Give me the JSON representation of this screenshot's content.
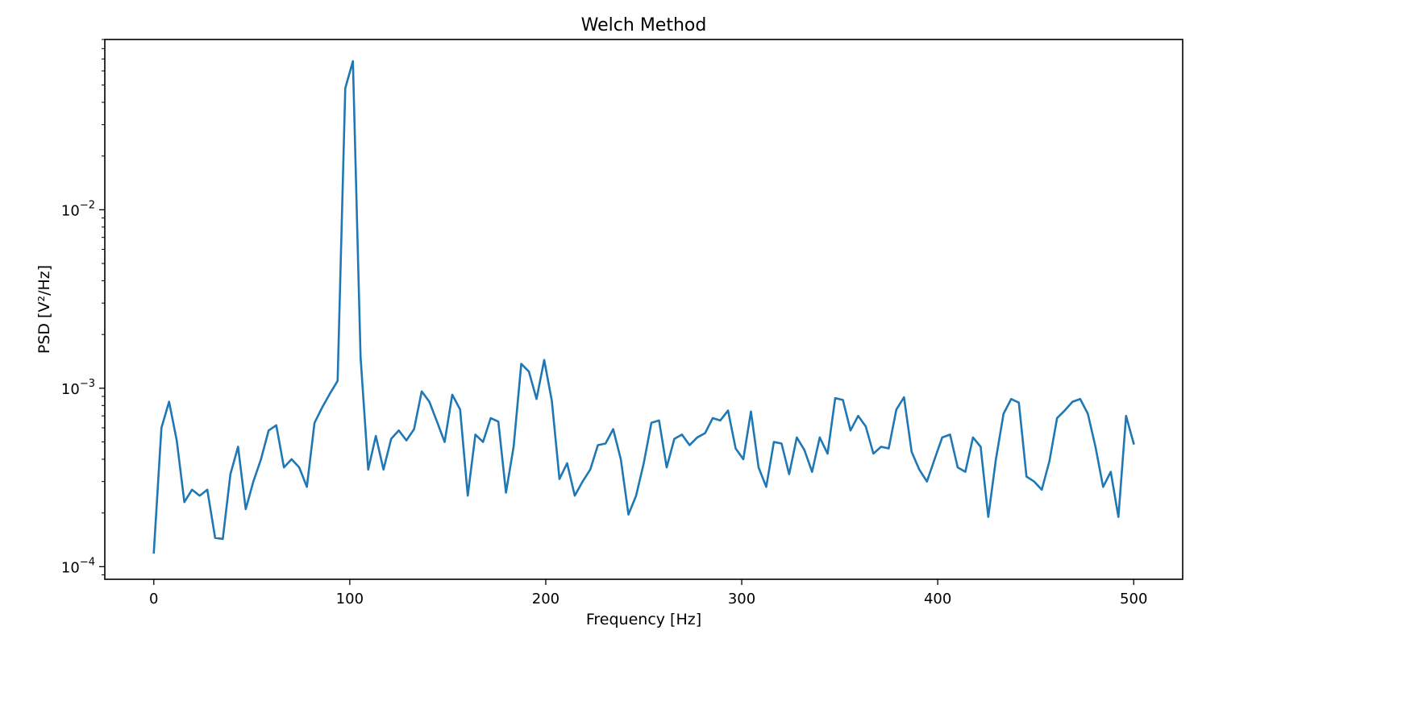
{
  "chart_data": {
    "type": "line",
    "title": "Welch Method",
    "xlabel": "Frequency [Hz]",
    "ylabel": "PSD [V²/Hz]",
    "xlim": [
      -25,
      525
    ],
    "ylim": [
      8.5e-05,
      0.09
    ],
    "yscale": "log",
    "grid": false,
    "x_ticks": [
      0,
      100,
      200,
      300,
      400,
      500
    ],
    "x_tick_labels": [
      "0",
      "100",
      "200",
      "300",
      "400",
      "500"
    ],
    "y_ticks": [
      0.0001,
      0.001,
      0.01
    ],
    "y_tick_labels": [
      {
        "base": "10",
        "exp": "−4"
      },
      {
        "base": "10",
        "exp": "−3"
      },
      {
        "base": "10",
        "exp": "−2"
      }
    ],
    "series": [
      {
        "color": "#1f77b4",
        "x": [
          0,
          3.9,
          7.8,
          11.7,
          15.6,
          19.5,
          23.4,
          27.3,
          31.3,
          35.2,
          39.1,
          43.0,
          46.9,
          50.8,
          54.7,
          58.6,
          62.5,
          66.4,
          70.3,
          74.2,
          78.1,
          82.0,
          85.9,
          89.8,
          93.8,
          97.7,
          101.6,
          105.5,
          109.4,
          113.3,
          117.2,
          121.1,
          125.0,
          128.9,
          132.8,
          136.7,
          140.6,
          144.5,
          148.4,
          152.3,
          156.3,
          160.2,
          164.1,
          168.0,
          171.9,
          175.8,
          179.7,
          183.6,
          187.5,
          191.4,
          195.3,
          199.2,
          203.1,
          207.0,
          210.9,
          214.8,
          218.8,
          222.7,
          226.6,
          230.5,
          234.4,
          238.3,
          242.2,
          246.1,
          250.0,
          253.9,
          257.8,
          261.7,
          265.6,
          269.5,
          273.4,
          277.3,
          281.3,
          285.2,
          289.1,
          293.0,
          296.9,
          300.8,
          304.7,
          308.6,
          312.5,
          316.4,
          320.3,
          324.2,
          328.1,
          332.0,
          335.9,
          339.8,
          343.8,
          347.7,
          351.6,
          355.5,
          359.4,
          363.3,
          367.2,
          371.1,
          375.0,
          378.9,
          382.8,
          386.7,
          390.6,
          394.5,
          398.4,
          402.3,
          406.3,
          410.2,
          414.1,
          418.0,
          421.9,
          425.8,
          429.7,
          433.6,
          437.5,
          441.4,
          445.3,
          449.2,
          453.1,
          457.0,
          460.9,
          464.8,
          468.8,
          472.7,
          476.6,
          480.5,
          484.4,
          488.3,
          492.2,
          496.1,
          500.0
        ],
        "y": [
          0.00012,
          0.0006,
          0.00084,
          0.00051,
          0.00023,
          0.00027,
          0.00025,
          0.00027,
          0.000145,
          0.000143,
          0.00033,
          0.00047,
          0.00021,
          0.0003,
          0.0004,
          0.00058,
          0.00062,
          0.00036,
          0.0004,
          0.00036,
          0.00028,
          0.00064,
          0.00078,
          0.00093,
          0.0011,
          0.048,
          0.068,
          0.0015,
          0.00035,
          0.00054,
          0.00035,
          0.00052,
          0.00058,
          0.00051,
          0.00059,
          0.00096,
          0.00084,
          0.00065,
          0.0005,
          0.00092,
          0.00076,
          0.00025,
          0.00055,
          0.0005,
          0.00068,
          0.00065,
          0.00026,
          0.00047,
          0.00137,
          0.00124,
          0.00087,
          0.00144,
          0.00085,
          0.00031,
          0.00038,
          0.00025,
          0.0003,
          0.00035,
          0.00048,
          0.00049,
          0.00059,
          0.0004,
          0.000196,
          0.00025,
          0.00038,
          0.00064,
          0.00066,
          0.00036,
          0.00052,
          0.00055,
          0.00048,
          0.00053,
          0.00056,
          0.00068,
          0.00066,
          0.00075,
          0.00046,
          0.0004,
          0.00074,
          0.00036,
          0.00028,
          0.0005,
          0.00049,
          0.00033,
          0.00053,
          0.00045,
          0.00034,
          0.00053,
          0.00043,
          0.00088,
          0.00086,
          0.00058,
          0.0007,
          0.00061,
          0.00043,
          0.00047,
          0.00046,
          0.00076,
          0.00089,
          0.00044,
          0.00035,
          0.0003,
          0.0004,
          0.00053,
          0.00055,
          0.00036,
          0.00034,
          0.00053,
          0.00047,
          0.00019,
          0.0004,
          0.00072,
          0.00087,
          0.00083,
          0.00032,
          0.0003,
          0.00027,
          0.00039,
          0.00068,
          0.00075,
          0.00084,
          0.00087,
          0.00072,
          0.00047,
          0.00028,
          0.00034,
          0.00019,
          0.0007,
          0.00049
        ]
      }
    ]
  }
}
